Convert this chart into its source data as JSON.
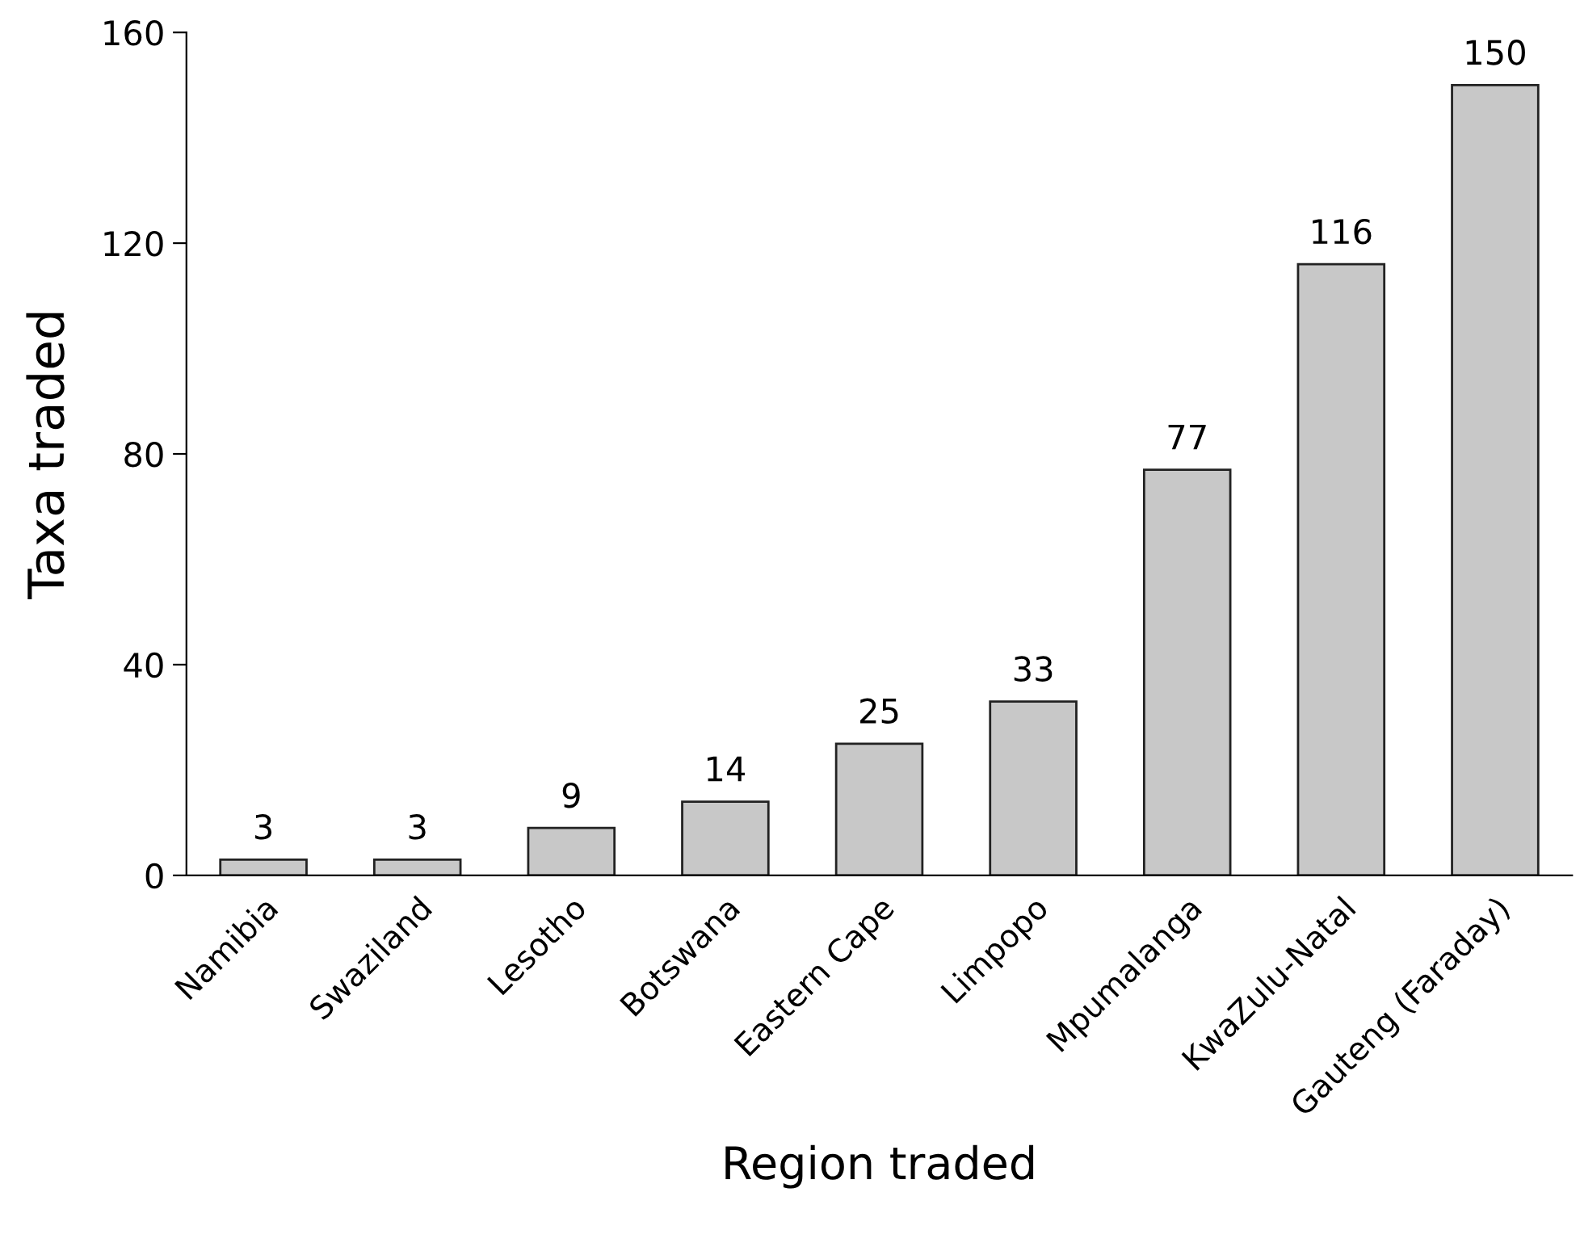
{
  "chart_data": {
    "type": "bar",
    "xlabel": "Region traded",
    "ylabel": "Taxa traded",
    "categories": [
      "Namibia",
      "Swaziland",
      "Lesotho",
      "Botswana",
      "Eastern Cape",
      "Limpopo",
      "Mpumalanga",
      "KwaZulu-Natal",
      "Gauteng (Faraday)"
    ],
    "values": [
      3,
      3,
      9,
      14,
      25,
      33,
      77,
      116,
      150
    ],
    "color": "#c8c8c8",
    "ylim": [
      0,
      160
    ],
    "yticks": [
      0,
      40,
      80,
      120,
      160
    ],
    "data_labels": true,
    "grid": false,
    "legend": false
  }
}
